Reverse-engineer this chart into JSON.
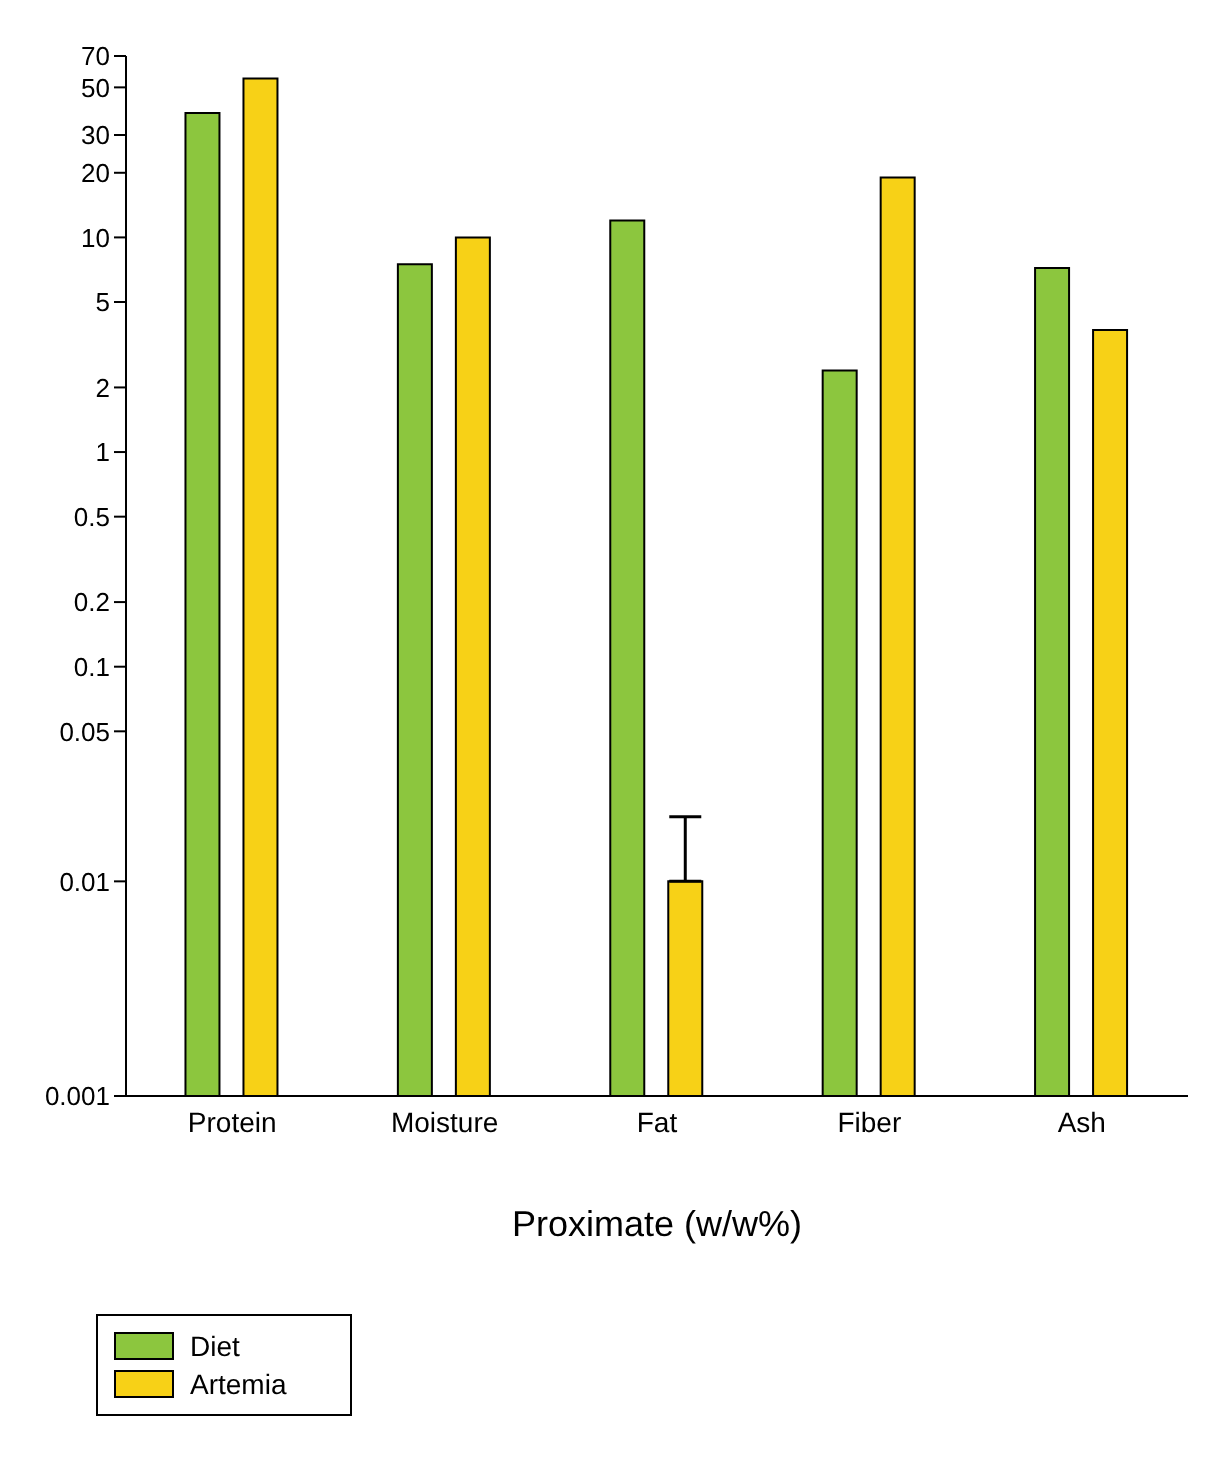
{
  "chart_data": {
    "type": "bar",
    "xlabel": "Proximate (w/w%)",
    "categories": [
      "Protein",
      "Moisture",
      "Fat",
      "Fiber",
      "Ash"
    ],
    "series": [
      {
        "name": "Diet",
        "color": "#8cc63e",
        "values": [
          38,
          7.5,
          12,
          2.4,
          7.2
        ]
      },
      {
        "name": "Artemia",
        "color": "#f7d117",
        "values": [
          55,
          10,
          0.01,
          19,
          3.7
        ],
        "errors": [
          null,
          null,
          [
            0.01,
            0.02
          ],
          null,
          null
        ]
      }
    ],
    "log": "y",
    "ylim": [
      0.001,
      70
    ],
    "yticks": [
      0.001,
      0.01,
      0.05,
      0.1,
      0.2,
      0.5,
      1,
      2,
      5,
      10,
      20,
      30,
      50,
      70
    ],
    "legend": "bottom left"
  }
}
